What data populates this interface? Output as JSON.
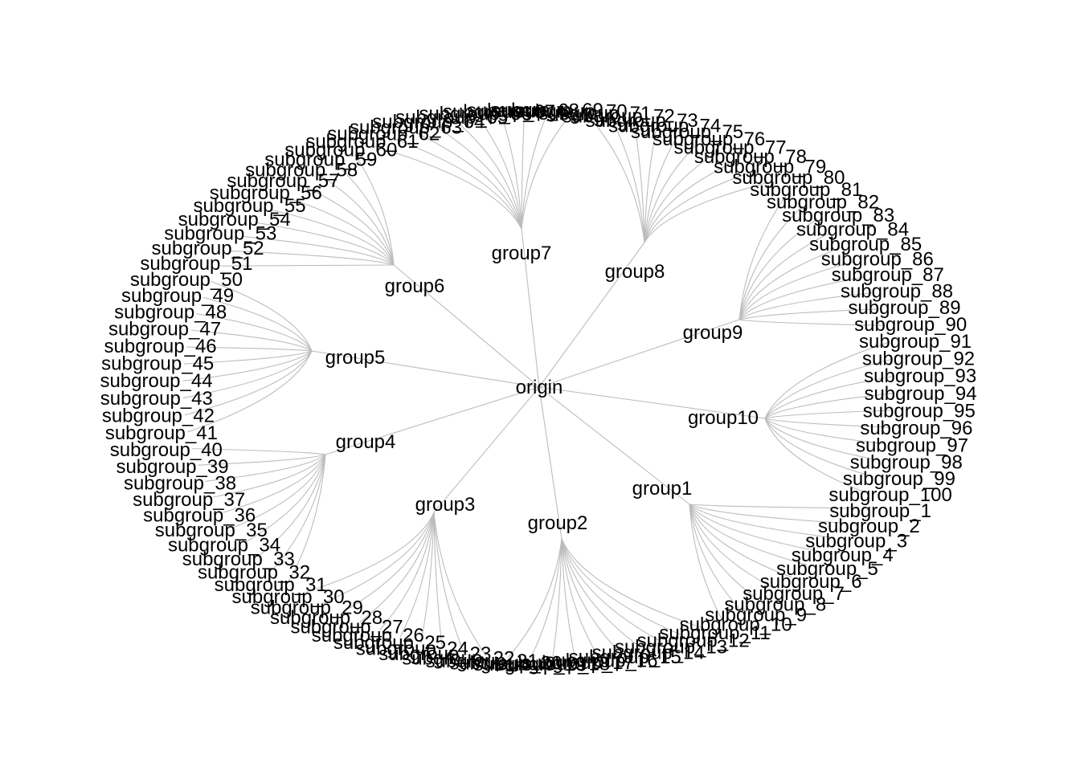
{
  "diagram": {
    "type": "circular-dendrogram",
    "root": {
      "label": "origin"
    },
    "edge_color": "#bdbdbd",
    "label_color": "#000000",
    "groups": [
      {
        "label": "group1",
        "subgroups": [
          "subgroup_1",
          "subgroup_2",
          "subgroup_3",
          "subgroup_4",
          "subgroup_5",
          "subgroup_6",
          "subgroup_7",
          "subgroup_8",
          "subgroup_9",
          "subgroup_10"
        ]
      },
      {
        "label": "group2",
        "subgroups": [
          "subgroup_11",
          "subgroup_12",
          "subgroup_13",
          "subgroup_14",
          "subgroup_15",
          "subgroup_16",
          "subgroup_17",
          "subgroup_18",
          "subgroup_19",
          "subgroup_20"
        ]
      },
      {
        "label": "group3",
        "subgroups": [
          "subgroup_21",
          "subgroup_22",
          "subgroup_23",
          "subgroup_24",
          "subgroup_25",
          "subgroup_26",
          "subgroup_27",
          "subgroup_28",
          "subgroup_29",
          "subgroup_30"
        ]
      },
      {
        "label": "group4",
        "subgroups": [
          "subgroup_31",
          "subgroup_32",
          "subgroup_33",
          "subgroup_34",
          "subgroup_35",
          "subgroup_36",
          "subgroup_37",
          "subgroup_38",
          "subgroup_39",
          "subgroup_40"
        ]
      },
      {
        "label": "group5",
        "subgroups": [
          "subgroup_41",
          "subgroup_42",
          "subgroup_43",
          "subgroup_44",
          "subgroup_45",
          "subgroup_46",
          "subgroup_47",
          "subgroup_48",
          "subgroup_49",
          "subgroup_50"
        ]
      },
      {
        "label": "group6",
        "subgroups": [
          "subgroup_51",
          "subgroup_52",
          "subgroup_53",
          "subgroup_54",
          "subgroup_55",
          "subgroup_56",
          "subgroup_57",
          "subgroup_58",
          "subgroup_59",
          "subgroup_60"
        ]
      },
      {
        "label": "group7",
        "subgroups": [
          "subgroup_61",
          "subgroup_62",
          "subgroup_63",
          "subgroup_64",
          "subgroup_65",
          "subgroup_66",
          "subgroup_67",
          "subgroup_68",
          "subgroup_69",
          "subgroup_70"
        ]
      },
      {
        "label": "group8",
        "subgroups": [
          "subgroup_71",
          "subgroup_72",
          "subgroup_73",
          "subgroup_74",
          "subgroup_75",
          "subgroup_76",
          "subgroup_77",
          "subgroup_78",
          "subgroup_79",
          "subgroup_80"
        ]
      },
      {
        "label": "group9",
        "subgroups": [
          "subgroup_81",
          "subgroup_82",
          "subgroup_83",
          "subgroup_84",
          "subgroup_85",
          "subgroup_86",
          "subgroup_87",
          "subgroup_88",
          "subgroup_89",
          "subgroup_90"
        ]
      },
      {
        "label": "group10",
        "subgroups": [
          "subgroup_91",
          "subgroup_92",
          "subgroup_93",
          "subgroup_94",
          "subgroup_95",
          "subgroup_96",
          "subgroup_97",
          "subgroup_98",
          "subgroup_99",
          "subgroup_100"
        ]
      }
    ]
  }
}
